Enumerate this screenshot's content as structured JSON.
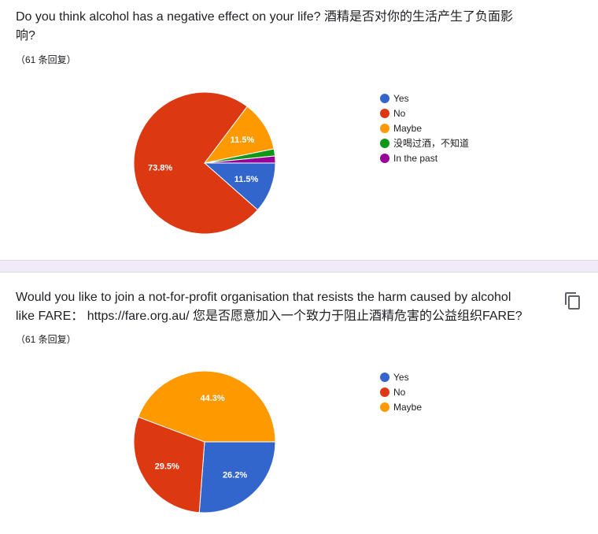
{
  "questions": [
    {
      "title": "Do you think alcohol has a negative effect on your life?  酒精是否对你的生活产生了负面影\n响?",
      "response_count": "（61 条回复）",
      "chart_data": {
        "type": "pie",
        "title": "Do you think alcohol has a negative effect on your life?  酒精是否对你的生活产生了负面影响?",
        "legend_position": "right",
        "slices": [
          {
            "name": "Yes",
            "value": 11.5,
            "label": "11.5%",
            "color": "#3366cc"
          },
          {
            "name": "No",
            "value": 73.8,
            "label": "73.8%",
            "color": "#dc3912"
          },
          {
            "name": "Maybe",
            "value": 11.5,
            "label": "11.5%",
            "color": "#ff9900"
          },
          {
            "name": "没喝过酒，不知道",
            "value": 1.6,
            "label": "",
            "color": "#109618"
          },
          {
            "name": "In the past",
            "value": 1.6,
            "label": "",
            "color": "#990099"
          }
        ]
      }
    },
    {
      "title": "Would you like to join a not-for-profit organisation that resists the harm caused by alcohol\nlike FARE：  https://fare.org.au/ 您是否愿意加入一个致力于阻止酒精危害的公益组织FARE?",
      "response_count": "（61 条回复）",
      "copy_icon": "copy-icon",
      "chart_data": {
        "type": "pie",
        "title": "Would you like to join a not-for-profit organisation that resists the harm caused by alcohol like FARE：  https://fare.org.au/ 您是否愿意加入一个致力于阻止酒精危害的公益组织FARE?",
        "legend_position": "right",
        "slices": [
          {
            "name": "Yes",
            "value": 26.2,
            "label": "26.2%",
            "color": "#3366cc"
          },
          {
            "name": "No",
            "value": 29.5,
            "label": "29.5%",
            "color": "#dc3912"
          },
          {
            "name": "Maybe",
            "value": 44.3,
            "label": "44.3%",
            "color": "#ff9900"
          }
        ]
      }
    }
  ],
  "colors": {
    "divider": "#f0ebf8",
    "blue": "#3366cc",
    "red": "#dc3912",
    "orange": "#ff9900",
    "green": "#109618",
    "purple": "#990099"
  }
}
